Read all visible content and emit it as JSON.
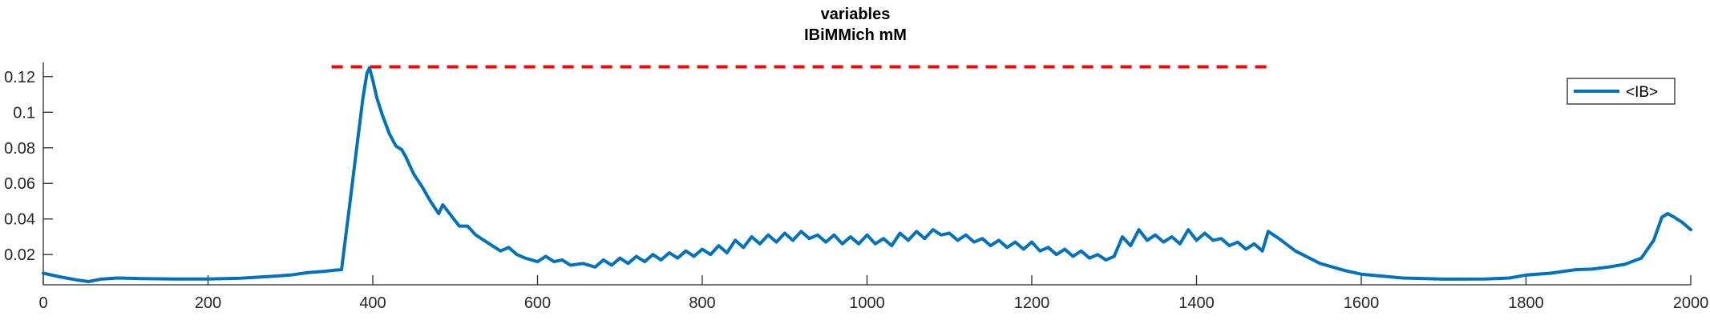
{
  "chart_data": {
    "type": "line",
    "title": "variables",
    "subtitle": "IBiMMich mM",
    "xlabel": "",
    "ylabel": "",
    "xlim": [
      0,
      2000
    ],
    "ylim": [
      0.003,
      0.128
    ],
    "grid": false,
    "legend_position": "top-right",
    "x_ticks": [
      0,
      200,
      400,
      600,
      800,
      1000,
      1200,
      1400,
      1600,
      1800,
      2000
    ],
    "y_ticks": [
      0.02,
      0.04,
      0.06,
      0.08,
      0.1,
      0.12
    ],
    "y_tick_labels": [
      "0.02",
      "0.04",
      "0.06",
      "0.08",
      "0.1",
      "0.12"
    ],
    "series": [
      {
        "name": "<IB>",
        "color": "#0072BD",
        "x": [
          0,
          20,
          40,
          55,
          70,
          90,
          120,
          160,
          200,
          240,
          280,
          300,
          320,
          340,
          353,
          362,
          372,
          380,
          388,
          393,
          396,
          400,
          405,
          412,
          420,
          428,
          435,
          440,
          450,
          460,
          470,
          480,
          485,
          495,
          505,
          515,
          525,
          535,
          545,
          555,
          565,
          575,
          585,
          600,
          610,
          620,
          630,
          640,
          655,
          670,
          680,
          690,
          700,
          710,
          720,
          730,
          740,
          750,
          760,
          770,
          780,
          790,
          800,
          810,
          820,
          830,
          840,
          850,
          860,
          870,
          880,
          890,
          900,
          910,
          920,
          930,
          940,
          950,
          960,
          970,
          980,
          990,
          1000,
          1010,
          1020,
          1030,
          1040,
          1050,
          1060,
          1070,
          1080,
          1090,
          1100,
          1110,
          1120,
          1130,
          1140,
          1150,
          1160,
          1170,
          1180,
          1190,
          1200,
          1210,
          1220,
          1230,
          1240,
          1250,
          1260,
          1270,
          1280,
          1290,
          1300,
          1310,
          1320,
          1330,
          1340,
          1350,
          1360,
          1370,
          1380,
          1390,
          1400,
          1410,
          1420,
          1430,
          1440,
          1450,
          1460,
          1470,
          1480,
          1487,
          1500,
          1520,
          1550,
          1580,
          1600,
          1650,
          1700,
          1750,
          1780,
          1800,
          1830,
          1860,
          1880,
          1900,
          1920,
          1940,
          1955,
          1965,
          1972,
          1980,
          1990,
          2000
        ],
        "values": [
          0.0095,
          0.0075,
          0.0058,
          0.0048,
          0.0062,
          0.0068,
          0.0065,
          0.0063,
          0.0063,
          0.0067,
          0.0078,
          0.0085,
          0.0098,
          0.0105,
          0.0112,
          0.0115,
          0.048,
          0.078,
          0.108,
          0.122,
          0.125,
          0.118,
          0.108,
          0.098,
          0.088,
          0.081,
          0.079,
          0.075,
          0.065,
          0.058,
          0.05,
          0.043,
          0.048,
          0.042,
          0.036,
          0.036,
          0.031,
          0.028,
          0.025,
          0.022,
          0.024,
          0.02,
          0.018,
          0.016,
          0.019,
          0.016,
          0.017,
          0.014,
          0.015,
          0.013,
          0.017,
          0.014,
          0.018,
          0.015,
          0.019,
          0.016,
          0.02,
          0.017,
          0.021,
          0.018,
          0.022,
          0.019,
          0.023,
          0.02,
          0.025,
          0.021,
          0.028,
          0.024,
          0.03,
          0.026,
          0.031,
          0.027,
          0.032,
          0.028,
          0.033,
          0.029,
          0.031,
          0.027,
          0.031,
          0.026,
          0.03,
          0.026,
          0.031,
          0.026,
          0.029,
          0.025,
          0.032,
          0.028,
          0.033,
          0.029,
          0.034,
          0.031,
          0.032,
          0.028,
          0.031,
          0.027,
          0.029,
          0.025,
          0.028,
          0.024,
          0.027,
          0.023,
          0.027,
          0.022,
          0.024,
          0.02,
          0.023,
          0.019,
          0.022,
          0.018,
          0.02,
          0.017,
          0.019,
          0.03,
          0.025,
          0.034,
          0.028,
          0.031,
          0.027,
          0.03,
          0.026,
          0.034,
          0.028,
          0.032,
          0.028,
          0.029,
          0.025,
          0.027,
          0.023,
          0.026,
          0.022,
          0.033,
          0.029,
          0.022,
          0.015,
          0.011,
          0.009,
          0.0068,
          0.0062,
          0.0063,
          0.0068,
          0.0085,
          0.0095,
          0.0115,
          0.0118,
          0.013,
          0.0145,
          0.018,
          0.028,
          0.041,
          0.043,
          0.041,
          0.038,
          0.034
        ]
      }
    ],
    "reference_line": {
      "y": 0.1255,
      "x_start": 350,
      "x_end": 1490,
      "color": "#ff0000"
    }
  }
}
